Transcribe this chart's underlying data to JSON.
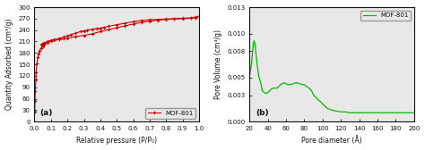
{
  "panel_a": {
    "title": "(a)",
    "xlabel": "Relative pressure (P/P₀)",
    "ylabel": "Quantity Adsorbed (cm³/g)",
    "ylim": [
      0,
      300
    ],
    "yticks": [
      0,
      30,
      60,
      90,
      120,
      150,
      180,
      210,
      240,
      270,
      300
    ],
    "xlim": [
      0,
      1.0
    ],
    "xticks": [
      0,
      0.1,
      0.2,
      0.3,
      0.4,
      0.5,
      0.6,
      0.7,
      0.8,
      0.9,
      1.0
    ],
    "legend_label": "MOF-801",
    "line_color": "#cc0000",
    "marker": "P",
    "markersize": 2.5,
    "adsorption_x": [
      0.001,
      0.003,
      0.005,
      0.008,
      0.01,
      0.015,
      0.02,
      0.025,
      0.03,
      0.04,
      0.05,
      0.06,
      0.08,
      0.1,
      0.12,
      0.15,
      0.18,
      0.2,
      0.25,
      0.3,
      0.35,
      0.4,
      0.45,
      0.5,
      0.55,
      0.6,
      0.65,
      0.7,
      0.75,
      0.8,
      0.85,
      0.9,
      0.95,
      0.98,
      1.0
    ],
    "adsorption_y": [
      25,
      55,
      80,
      110,
      130,
      152,
      168,
      178,
      185,
      193,
      198,
      202,
      207,
      211,
      213,
      215,
      217,
      219,
      223,
      226,
      230,
      236,
      241,
      246,
      251,
      256,
      260,
      263,
      266,
      268,
      269,
      270,
      271,
      273,
      276
    ],
    "desorption_x": [
      1.0,
      0.98,
      0.95,
      0.9,
      0.85,
      0.8,
      0.75,
      0.7,
      0.65,
      0.6,
      0.55,
      0.5,
      0.45,
      0.42,
      0.4,
      0.38,
      0.35,
      0.32,
      0.3,
      0.28,
      0.25,
      0.22,
      0.2,
      0.18,
      0.15,
      0.12,
      0.1,
      0.08,
      0.06,
      0.05,
      0.04
    ],
    "desorption_y": [
      276,
      274,
      272,
      271,
      270,
      269,
      268,
      267,
      265,
      262,
      258,
      254,
      250,
      247,
      245,
      244,
      242,
      240,
      238,
      236,
      232,
      228,
      225,
      222,
      218,
      215,
      213,
      210,
      207,
      205,
      202
    ]
  },
  "panel_b": {
    "title": "(b)",
    "xlabel": "Pore diameter (Å)",
    "ylabel": "Pore Volume (cm³/g)",
    "ylim": [
      0,
      0.013
    ],
    "yticks": [
      0.0,
      0.003,
      0.005,
      0.008,
      0.01,
      0.013
    ],
    "xlim": [
      20,
      200
    ],
    "xticks": [
      20,
      40,
      60,
      80,
      100,
      120,
      140,
      160,
      180,
      200
    ],
    "legend_label": "MOF-801",
    "line_color": "#00bb00",
    "pore_x": [
      20,
      21,
      22,
      23,
      24,
      25,
      26,
      27,
      28,
      29,
      30,
      32,
      34,
      36,
      38,
      40,
      42,
      44,
      46,
      48,
      50,
      52,
      55,
      58,
      60,
      62,
      65,
      68,
      70,
      72,
      75,
      78,
      80,
      82,
      85,
      88,
      90,
      95,
      100,
      105,
      110,
      115,
      120,
      125,
      130,
      140,
      150,
      160,
      170,
      180,
      190,
      200
    ],
    "pore_y": [
      0.0052,
      0.0058,
      0.0065,
      0.0075,
      0.0088,
      0.0092,
      0.0088,
      0.0078,
      0.0068,
      0.006,
      0.0052,
      0.0045,
      0.0035,
      0.0033,
      0.0032,
      0.0033,
      0.0035,
      0.0037,
      0.0038,
      0.0038,
      0.0038,
      0.004,
      0.0043,
      0.0044,
      0.0043,
      0.0042,
      0.0042,
      0.0043,
      0.0044,
      0.0044,
      0.0043,
      0.0042,
      0.0042,
      0.004,
      0.0038,
      0.0035,
      0.003,
      0.0025,
      0.002,
      0.0015,
      0.0013,
      0.0012,
      0.0011,
      0.0011,
      0.001,
      0.001,
      0.001,
      0.001,
      0.001,
      0.001,
      0.001,
      0.001
    ]
  },
  "bg_color": "#ffffff",
  "plot_bg_color": "#e8e8e8",
  "text_color": "#111111",
  "tick_color": "#111111",
  "axis_color": "#111111",
  "figsize": [
    4.74,
    1.68
  ],
  "dpi": 100
}
